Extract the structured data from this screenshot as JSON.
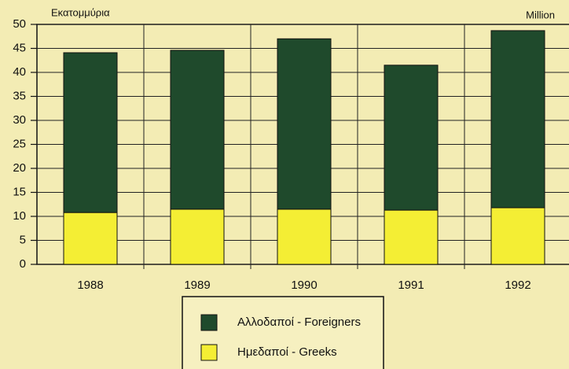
{
  "chart_data": {
    "type": "stacked_bar",
    "y_label": "Εκατομμύρια",
    "y_label_right": "Million",
    "categories": [
      "1988",
      "1989",
      "1990",
      "1991",
      "1992"
    ],
    "series": [
      {
        "name": "Ημεδαποί - Greeks",
        "color": "#f4ee34",
        "values": [
          10.8,
          11.5,
          11.5,
          11.3,
          11.8
        ]
      },
      {
        "name": "Αλλοδαποί - Foreigners",
        "color": "#1f4a2c",
        "values": [
          33.3,
          33.1,
          35.5,
          30.2,
          36.9
        ]
      }
    ],
    "ylim": [
      0,
      50
    ],
    "yticks": [
      0,
      5,
      10,
      15,
      20,
      25,
      30,
      35,
      40,
      45,
      50
    ],
    "grid": true
  }
}
